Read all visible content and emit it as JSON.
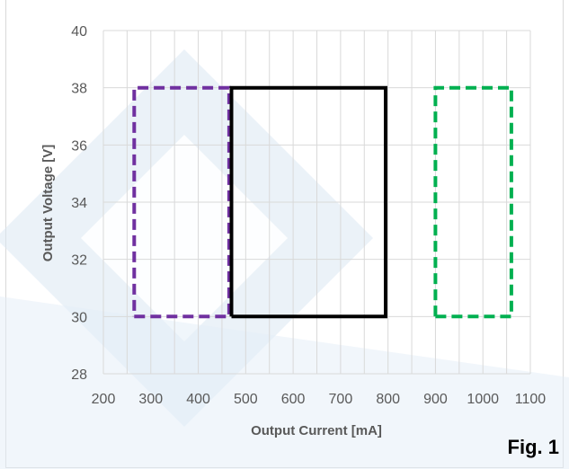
{
  "chart_data": {
    "type": "scatter",
    "title": "",
    "xlabel": "Output Current [mA]",
    "ylabel": "Output Voltage [V]",
    "xlim": [
      200,
      1100
    ],
    "ylim": [
      28,
      40
    ],
    "xticks": [
      200,
      300,
      400,
      500,
      600,
      700,
      800,
      900,
      1000,
      1100
    ],
    "yticks": [
      28,
      30,
      32,
      34,
      36,
      38,
      40
    ],
    "x_minor_step": 50,
    "grid": true,
    "legend": "none",
    "series": [
      {
        "x": [
          265,
          465,
          465,
          265,
          265
        ],
        "y": [
          30,
          30,
          38,
          38,
          30
        ],
        "color": "#7030a0",
        "line_style": "dashed"
      },
      {
        "x": [
          470,
          795,
          795,
          470,
          470
        ],
        "y": [
          30,
          30,
          38,
          38,
          30
        ],
        "color": "#000000",
        "line_style": "solid"
      },
      {
        "x": [
          900,
          1060,
          1060,
          900,
          900
        ],
        "y": [
          30,
          30,
          38,
          38,
          30
        ],
        "color": "#00b050",
        "line_style": "dashed"
      }
    ]
  },
  "figure_label": "Fig. 1",
  "colors": {
    "watermark": "#dbe7f3",
    "grid": "#d9d9d9",
    "axis_text": "#595959"
  }
}
